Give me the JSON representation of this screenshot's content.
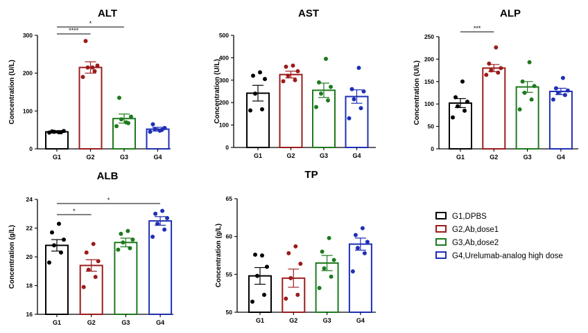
{
  "chart_data": [
    {
      "type": "bar",
      "title": "ALT",
      "ylabel": "Concentration (U/L)",
      "ylim": [
        0,
        300
      ],
      "yticks": [
        0,
        100,
        200,
        300
      ],
      "categories": [
        "G1",
        "G2",
        "G3",
        "G4"
      ],
      "values": [
        45,
        215,
        80,
        52
      ],
      "sem": [
        3,
        15,
        12,
        5
      ],
      "points": [
        [
          43,
          44,
          45,
          47,
          46,
          44
        ],
        [
          190,
          205,
          215,
          220,
          285,
          215
        ],
        [
          60,
          68,
          78,
          85,
          135,
          70
        ],
        [
          45,
          50,
          52,
          55,
          65,
          48
        ]
      ],
      "significance": [
        {
          "from": "G1",
          "to": "G3",
          "label": "*"
        },
        {
          "from": "G1",
          "to": "G2",
          "label": "****"
        }
      ]
    },
    {
      "type": "bar",
      "title": "AST",
      "ylabel": "Concentration (U/L)",
      "ylim": [
        0,
        500
      ],
      "yticks": [
        0,
        100,
        200,
        300,
        400,
        500
      ],
      "categories": [
        "G1",
        "G2",
        "G3",
        "G4"
      ],
      "values": [
        242,
        325,
        255,
        227
      ],
      "sem": [
        35,
        15,
        32,
        30
      ],
      "points": [
        [
          165,
          170,
          240,
          305,
          320,
          335
        ],
        [
          295,
          300,
          320,
          340,
          360,
          365
        ],
        [
          180,
          210,
          240,
          270,
          290,
          395
        ],
        [
          130,
          175,
          215,
          250,
          260,
          355
        ]
      ],
      "significance": []
    },
    {
      "type": "bar",
      "title": "ALP",
      "ylabel": "Concentration (U/L)",
      "ylim": [
        0,
        250
      ],
      "yticks": [
        0,
        50,
        100,
        150,
        200,
        250
      ],
      "categories": [
        "G1",
        "G2",
        "G3",
        "G4"
      ],
      "values": [
        102,
        180,
        138,
        128
      ],
      "sem": [
        10,
        8,
        12,
        7
      ],
      "points": [
        [
          70,
          85,
          95,
          105,
          115,
          150
        ],
        [
          165,
          170,
          175,
          180,
          190,
          226
        ],
        [
          88,
          110,
          125,
          140,
          150,
          193
        ],
        [
          110,
          120,
          125,
          130,
          135,
          158
        ]
      ],
      "significance": [
        {
          "from": "G1",
          "to": "G2",
          "label": "***"
        }
      ]
    },
    {
      "type": "bar",
      "title": "ALB",
      "ylabel": "Concentration (g/L)",
      "ylim": [
        16,
        24
      ],
      "yticks": [
        16,
        18,
        20,
        22,
        24
      ],
      "categories": [
        "G1",
        "G2",
        "G3",
        "G4"
      ],
      "values": [
        20.8,
        19.4,
        21.0,
        22.5
      ],
      "sem": [
        0.4,
        0.4,
        0.3,
        0.3
      ],
      "points": [
        [
          19.6,
          20.3,
          20.8,
          21.2,
          21.7,
          22.3
        ],
        [
          17.9,
          18.6,
          19.1,
          19.7,
          20.3,
          20.9
        ],
        [
          20.5,
          20.6,
          21.0,
          21.2,
          21.6,
          21.8
        ],
        [
          21.4,
          21.9,
          22.3,
          22.7,
          23.0,
          23.2
        ]
      ],
      "significance": [
        {
          "from": "G1",
          "to": "G2",
          "label": "*"
        },
        {
          "from": "G1",
          "to": "G4",
          "label": "*"
        }
      ]
    },
    {
      "type": "bar",
      "title": "TP",
      "ylabel": "Concentration (g/L)",
      "ylim": [
        50,
        65
      ],
      "yticks": [
        50,
        55,
        60,
        65
      ],
      "categories": [
        "G1",
        "G2",
        "G3",
        "G4"
      ],
      "values": [
        54.8,
        54.5,
        56.5,
        59.0
      ],
      "sem": [
        1.1,
        1.2,
        1.0,
        0.8
      ],
      "points": [
        [
          51.4,
          52.3,
          54.8,
          56.0,
          57.6,
          57.5
        ],
        [
          51.8,
          52.3,
          54.5,
          56.4,
          57.8,
          58.7
        ],
        [
          53.2,
          54.7,
          55.8,
          56.9,
          58.0,
          59.8
        ],
        [
          55.4,
          57.8,
          58.5,
          59.3,
          60.2,
          61.1
        ]
      ],
      "significance": []
    }
  ],
  "legend": [
    {
      "label": "G1,DPBS",
      "color": "#000000"
    },
    {
      "label": "G2,Ab,dose1",
      "color": "#9b1c1c"
    },
    {
      "label": "G3,Ab,dose2",
      "color": "#1d7a1d"
    },
    {
      "label": "G4,Urelumab-analog high dose",
      "color": "#1f2fb5"
    }
  ],
  "colors": {
    "G1": "#000000",
    "G2": "#9b1c1c",
    "G3": "#1d7a1d",
    "G4": "#1f2fb5"
  }
}
